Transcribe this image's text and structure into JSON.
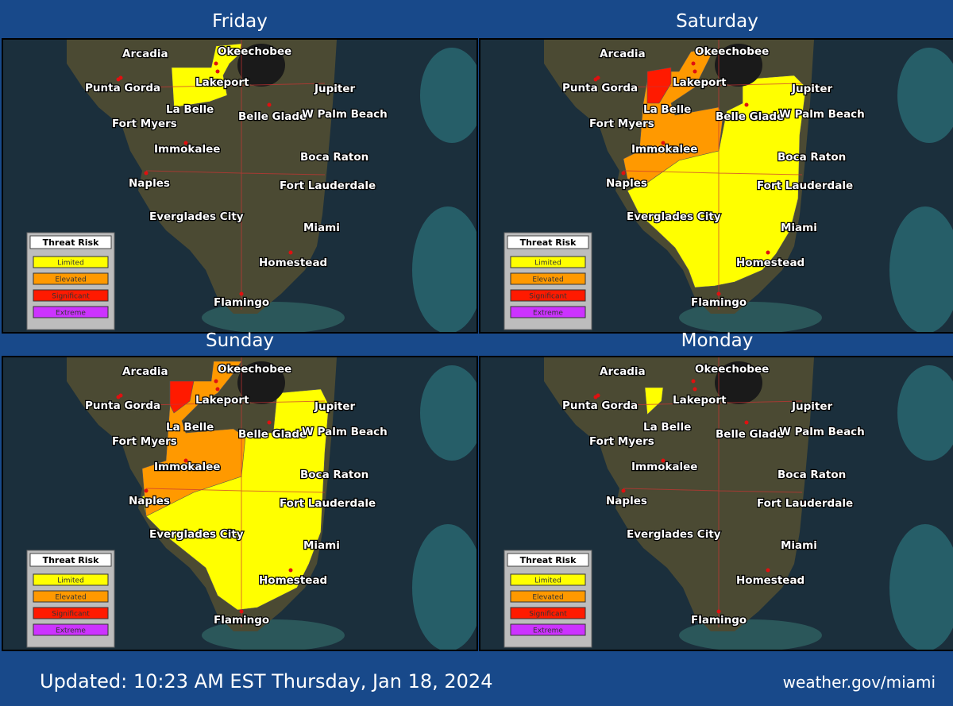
{
  "panels": [
    {
      "title": "Friday"
    },
    {
      "title": "Saturday"
    },
    {
      "title": "Sunday"
    },
    {
      "title": "Monday"
    }
  ],
  "cities": [
    "Arcadia",
    "Okeechobee",
    "Punta Gorda",
    "Lakeport",
    "Jupiter",
    "La Belle",
    "Fort Myers",
    "Belle Glade",
    "W Palm Beach",
    "Immokalee",
    "Boca Raton",
    "Naples",
    "Fort Lauderdale",
    "Everglades City",
    "Miami",
    "Homestead",
    "Flamingo"
  ],
  "legend": {
    "title": "Threat Risk",
    "items": [
      {
        "label": "Limited",
        "color": "#ffff00"
      },
      {
        "label": "Elevated",
        "color": "#ff9900"
      },
      {
        "label": "Significant",
        "color": "#ff1a00"
      },
      {
        "label": "Extreme",
        "color": "#cc33ff"
      }
    ]
  },
  "footer": {
    "updated": "Updated: 10:23 AM EST Thursday, Jan 18, 2024",
    "site": "weather.gov/miami"
  }
}
